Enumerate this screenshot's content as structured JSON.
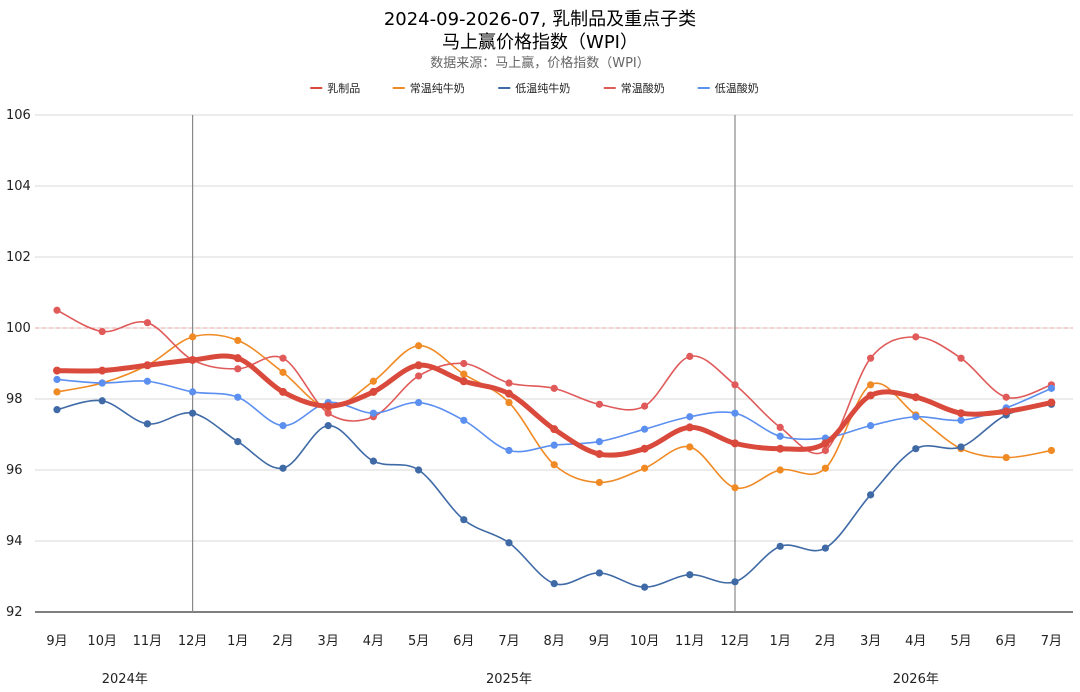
{
  "chart_data": {
    "type": "line",
    "title": "2024-09-2026-07, 乳制品及重点子类",
    "subtitle": "马上赢价格指数（WPI）",
    "source": "数据来源：马上赢，价格指数（WPI）",
    "ylim": [
      92,
      106
    ],
    "yticks": [
      92,
      94,
      96,
      98,
      100,
      102,
      104,
      106
    ],
    "reference_line": 100,
    "categories": [
      "9月",
      "10月",
      "11月",
      "12月",
      "1月",
      "2月",
      "3月",
      "4月",
      "5月",
      "6月",
      "7月",
      "8月",
      "9月",
      "10月",
      "11月",
      "12月",
      "1月",
      "2月",
      "3月",
      "4月",
      "5月",
      "6月",
      "7月"
    ],
    "year_labels": [
      {
        "label": "2024年",
        "center_index": 1.5
      },
      {
        "label": "2025年",
        "center_index": 10
      },
      {
        "label": "2026年",
        "center_index": 19
      }
    ],
    "year_dividers_after_index": [
      3,
      15
    ],
    "legend_position": "top",
    "series": [
      {
        "name": "乳制品",
        "color": "#d94a3c",
        "width": 5,
        "values": [
          98.8,
          98.8,
          98.95,
          99.1,
          99.15,
          98.2,
          97.8,
          98.2,
          98.95,
          98.5,
          98.15,
          97.15,
          96.45,
          96.6,
          97.2,
          96.75,
          96.6,
          96.75,
          98.1,
          98.05,
          97.6,
          97.65,
          97.9
        ]
      },
      {
        "name": "常温纯牛奶",
        "color": "#f08a24",
        "width": 1.6,
        "values": [
          98.2,
          98.45,
          98.95,
          99.75,
          99.65,
          98.75,
          97.75,
          98.5,
          99.5,
          98.7,
          97.9,
          96.15,
          95.65,
          96.05,
          96.65,
          95.5,
          96.0,
          96.05,
          98.4,
          97.55,
          96.6,
          96.35,
          96.55
        ]
      },
      {
        "name": "低温纯牛奶",
        "color": "#3f6aa6",
        "width": 1.6,
        "values": [
          97.7,
          97.95,
          97.3,
          97.6,
          96.8,
          96.05,
          97.25,
          96.25,
          96.0,
          94.6,
          93.95,
          92.8,
          93.1,
          92.7,
          93.05,
          92.85,
          93.85,
          93.8,
          95.3,
          96.6,
          96.65,
          97.55,
          97.85
        ]
      },
      {
        "name": "常温酸奶",
        "color": "#e05a5a",
        "width": 1.6,
        "values": [
          100.5,
          99.9,
          100.15,
          99.1,
          98.85,
          99.15,
          97.6,
          97.5,
          98.65,
          99.0,
          98.45,
          98.3,
          97.85,
          97.8,
          99.2,
          98.4,
          97.2,
          96.55,
          99.15,
          99.75,
          99.15,
          98.05,
          98.4
        ]
      },
      {
        "name": "低温酸奶",
        "color": "#5b8ff0",
        "width": 1.6,
        "values": [
          98.55,
          98.45,
          98.5,
          98.2,
          98.05,
          97.25,
          97.9,
          97.6,
          97.9,
          97.4,
          96.55,
          96.7,
          96.8,
          97.15,
          97.5,
          97.6,
          96.95,
          96.9,
          97.25,
          97.5,
          97.4,
          97.75,
          98.3
        ]
      }
    ]
  }
}
